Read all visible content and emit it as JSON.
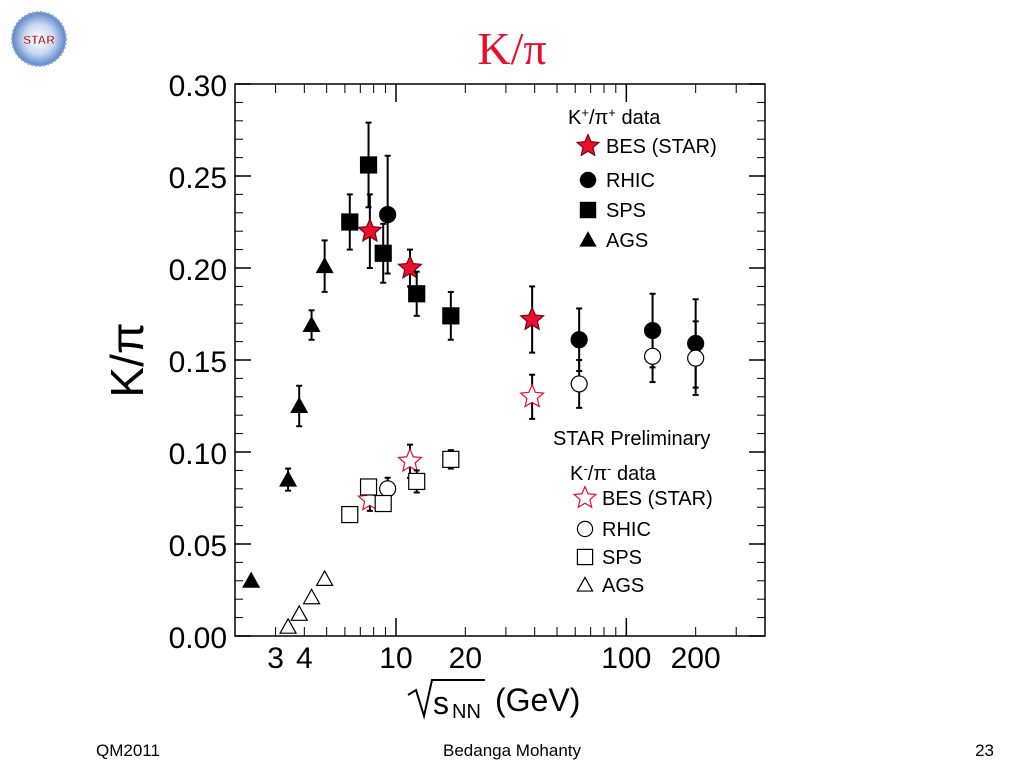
{
  "slide": {
    "title": "K/π",
    "logo_text": "STAR",
    "footer_left": "QM2011",
    "footer_center": "Bedanga Mohanty",
    "footer_right": "23"
  },
  "chart_data": {
    "type": "scatter",
    "ylabel": "K/π",
    "xlabel_sqrt": "s",
    "xlabel_sub": "NN",
    "xlabel_unit": "(GeV)",
    "x_scale": "log",
    "xlim": [
      2,
      400
    ],
    "ylim": [
      0.0,
      0.3
    ],
    "x_ticks": [
      3,
      4,
      10,
      20,
      100,
      200
    ],
    "y_ticks": [
      "0.00",
      "0.05",
      "0.10",
      "0.15",
      "0.20",
      "0.25",
      "0.30"
    ],
    "annotation": "STAR Preliminary",
    "legend_groups": [
      {
        "title_main": "K",
        "title_sup1": "+",
        "title_mid": "/π",
        "title_sup2": "+",
        "title_end": " data",
        "entries": [
          {
            "label": "BES (STAR)",
            "marker": "star",
            "filled": true,
            "color": "#e8102a"
          },
          {
            "label": "RHIC",
            "marker": "circle",
            "filled": true,
            "color": "#000000"
          },
          {
            "label": "SPS",
            "marker": "square",
            "filled": true,
            "color": "#000000"
          },
          {
            "label": "AGS",
            "marker": "triangle",
            "filled": true,
            "color": "#000000"
          }
        ]
      },
      {
        "title_main": "K",
        "title_sup1": "-",
        "title_mid": "/π",
        "title_sup2": "-",
        "title_end": " data",
        "entries": [
          {
            "label": "BES (STAR)",
            "marker": "star",
            "filled": false,
            "color": "#e8102a"
          },
          {
            "label": "RHIC",
            "marker": "circle",
            "filled": false,
            "color": "#000000"
          },
          {
            "label": "SPS",
            "marker": "square",
            "filled": false,
            "color": "#000000"
          },
          {
            "label": "AGS",
            "marker": "triangle",
            "filled": false,
            "color": "#000000"
          }
        ]
      }
    ],
    "series": [
      {
        "name": "BES (STAR)",
        "group": "K+/π+",
        "marker": "star",
        "filled": true,
        "color": "#e8102a",
        "points": [
          {
            "x": 7.7,
            "y": 0.22,
            "err": 0.02
          },
          {
            "x": 11.5,
            "y": 0.2,
            "err": 0.01
          },
          {
            "x": 39,
            "y": 0.172,
            "err": 0.018
          }
        ]
      },
      {
        "name": "RHIC",
        "group": "K+/π+",
        "marker": "circle",
        "filled": true,
        "color": "#000000",
        "points": [
          {
            "x": 9.2,
            "y": 0.229,
            "err": 0.032
          },
          {
            "x": 62.4,
            "y": 0.161,
            "err": 0.017
          },
          {
            "x": 130,
            "y": 0.166,
            "err": 0.02
          },
          {
            "x": 200,
            "y": 0.159,
            "err": 0.024
          }
        ]
      },
      {
        "name": "SPS",
        "group": "K+/π+",
        "marker": "square",
        "filled": true,
        "color": "#000000",
        "points": [
          {
            "x": 6.3,
            "y": 0.225,
            "err": 0.015
          },
          {
            "x": 7.6,
            "y": 0.256,
            "err": 0.023
          },
          {
            "x": 8.8,
            "y": 0.208,
            "err": 0.016
          },
          {
            "x": 12.3,
            "y": 0.186,
            "err": 0.012
          },
          {
            "x": 17.3,
            "y": 0.174,
            "err": 0.013
          }
        ]
      },
      {
        "name": "AGS",
        "group": "K+/π+",
        "marker": "triangle",
        "filled": true,
        "color": "#000000",
        "points": [
          {
            "x": 2.35,
            "y": 0.03,
            "err": 0.0
          },
          {
            "x": 3.4,
            "y": 0.085,
            "err": 0.006
          },
          {
            "x": 3.8,
            "y": 0.125,
            "err": 0.011
          },
          {
            "x": 4.3,
            "y": 0.169,
            "err": 0.008
          },
          {
            "x": 4.9,
            "y": 0.201,
            "err": 0.014
          }
        ]
      },
      {
        "name": "BES (STAR)",
        "group": "K-/π-",
        "marker": "star",
        "filled": false,
        "color": "#e8102a",
        "points": [
          {
            "x": 7.7,
            "y": 0.074,
            "err": 0.006
          },
          {
            "x": 11.5,
            "y": 0.095,
            "err": 0.009
          },
          {
            "x": 39,
            "y": 0.13,
            "err": 0.012
          }
        ]
      },
      {
        "name": "RHIC",
        "group": "K-/π-",
        "marker": "circle",
        "filled": false,
        "color": "#000000",
        "points": [
          {
            "x": 9.2,
            "y": 0.08,
            "err": 0.006
          },
          {
            "x": 62.4,
            "y": 0.137,
            "err": 0.013
          },
          {
            "x": 130,
            "y": 0.152,
            "err": 0.014
          },
          {
            "x": 200,
            "y": 0.151,
            "err": 0.02
          }
        ]
      },
      {
        "name": "SPS",
        "group": "K-/π-",
        "marker": "square",
        "filled": false,
        "color": "#000000",
        "points": [
          {
            "x": 6.3,
            "y": 0.066,
            "err": 0.0
          },
          {
            "x": 7.6,
            "y": 0.081,
            "err": 0.004
          },
          {
            "x": 8.8,
            "y": 0.072,
            "err": 0.004
          },
          {
            "x": 12.3,
            "y": 0.084,
            "err": 0.006
          },
          {
            "x": 17.3,
            "y": 0.096,
            "err": 0.005
          }
        ]
      },
      {
        "name": "AGS",
        "group": "K-/π-",
        "marker": "triangle",
        "filled": false,
        "color": "#000000",
        "points": [
          {
            "x": 3.4,
            "y": 0.005,
            "err": 0.0
          },
          {
            "x": 3.8,
            "y": 0.012,
            "err": 0.0
          },
          {
            "x": 4.3,
            "y": 0.021,
            "err": 0.0
          },
          {
            "x": 4.9,
            "y": 0.031,
            "err": 0.0
          }
        ]
      }
    ]
  }
}
